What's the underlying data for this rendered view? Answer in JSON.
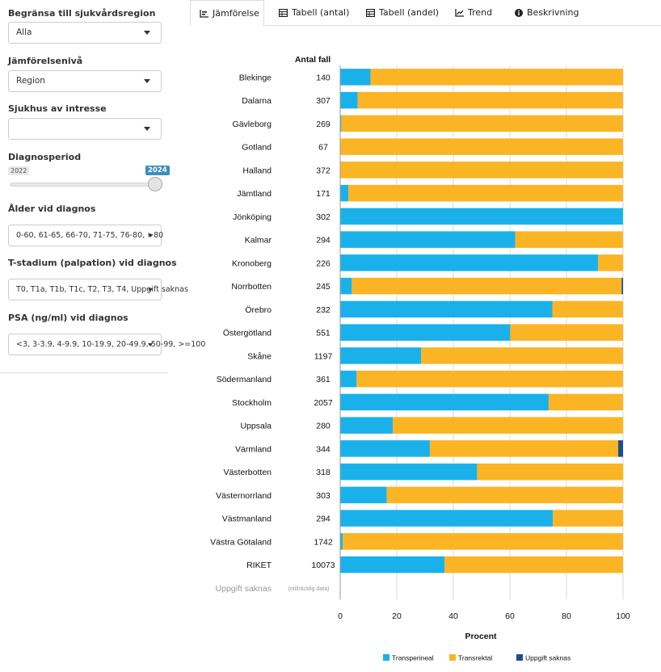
{
  "sidebar": {
    "region_label": "Begränsa till sjukvårdsregion",
    "region_value": "Alla",
    "level_label": "Jämförelsenivå",
    "level_value": "Region",
    "hospital_label": "Sjukhus av intresse",
    "hospital_value": "",
    "period_label": "Diagnosperiod",
    "period_min": "2022",
    "period_value": "2024",
    "age_label": "Ålder vid diagnos",
    "age_value": "0-60, 61-65, 66-70, 71-75, 76-80, >80",
    "tstage_label": "T-stadium (palpation) vid diagnos",
    "tstage_value": "T0, T1a, T1b, T1c, T2, T3, T4, Uppgift saknas",
    "psa_label": "PSA (ng/ml) vid diagnos",
    "psa_value": "<3, 3-3.9, 4-9.9, 10-19.9, 20-49.9, 50-99, >=100"
  },
  "tabs": [
    {
      "label": "Jämförelse",
      "icon": "bar-chart-icon"
    },
    {
      "label": "Tabell (antal)",
      "icon": "table-icon"
    },
    {
      "label": "Tabell (andel)",
      "icon": "table-icon"
    },
    {
      "label": "Trend",
      "icon": "line-chart-icon"
    },
    {
      "label": "Beskrivning",
      "icon": "info-icon"
    }
  ],
  "colors": {
    "transperineal": "#1ab1ea",
    "transrektal": "#fbb424",
    "uppgift_saknas": "#1f4e8c",
    "accent": "#3c8dbc",
    "grid": "#d9d9d9"
  },
  "chart_data": {
    "type": "bar",
    "orientation": "horizontal",
    "stacked": true,
    "count_header": "Antal fall",
    "categories": [
      "Blekinge",
      "Dalarna",
      "Gävleborg",
      "Gotland",
      "Halland",
      "Jämtland",
      "Jönköping",
      "Kalmar",
      "Kronoberg",
      "Norrbotten",
      "Örebro",
      "Östergötland",
      "Skåne",
      "Södermanland",
      "Stockholm",
      "Uppsala",
      "Värmland",
      "Västerbotten",
      "Västernorrland",
      "Västmanland",
      "Västra Götaland",
      "RIKET",
      "Uppgift saknas"
    ],
    "counts": [
      "140",
      "307",
      "269",
      "67",
      "372",
      "171",
      "302",
      "294",
      "226",
      "245",
      "232",
      "551",
      "1197",
      "361",
      "2057",
      "280",
      "344",
      "318",
      "303",
      "294",
      "1742",
      "10073",
      "(otillräcklig data)"
    ],
    "series": [
      {
        "name": "Transperineal",
        "values": [
          10.7,
          6.2,
          0.4,
          0,
          0,
          2.9,
          100,
          61.9,
          91.2,
          4.1,
          75.0,
          60.1,
          28.6,
          5.8,
          73.7,
          18.6,
          31.7,
          48.4,
          16.5,
          75.2,
          0.9,
          36.9,
          null
        ]
      },
      {
        "name": "Transrektal",
        "values": [
          89.3,
          93.8,
          99.6,
          100,
          100,
          97.1,
          0,
          38.1,
          8.8,
          95.4,
          25.0,
          39.9,
          71.4,
          94.2,
          26.3,
          81.4,
          66.6,
          51.6,
          83.5,
          24.8,
          99.1,
          63.1,
          null
        ]
      },
      {
        "name": "Uppgift saknas",
        "values": [
          0,
          0,
          0,
          0,
          0,
          0,
          0,
          0,
          0,
          0.5,
          0,
          0,
          0,
          0,
          0,
          0,
          1.7,
          0,
          0,
          0,
          0,
          0,
          null
        ]
      }
    ],
    "xlabel": "Procent",
    "xlim": [
      0,
      100
    ],
    "xticks": [
      "0",
      "20",
      "40",
      "60",
      "80",
      "100"
    ],
    "legend_position": "bottom"
  }
}
